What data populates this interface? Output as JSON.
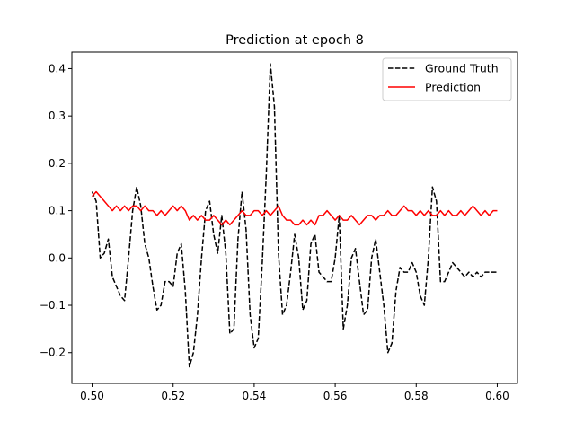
{
  "chart_data": {
    "type": "line",
    "title": "Prediction at epoch 8",
    "xlabel": "",
    "ylabel": "",
    "xlim": [
      0.495,
      0.605
    ],
    "ylim": [
      -0.265,
      0.435
    ],
    "xticks": [
      0.5,
      0.52,
      0.54,
      0.56,
      0.58,
      0.6
    ],
    "xtick_labels": [
      "0.50",
      "0.52",
      "0.54",
      "0.56",
      "0.58",
      "0.60"
    ],
    "yticks": [
      -0.2,
      -0.1,
      0.0,
      0.1,
      0.2,
      0.3,
      0.4
    ],
    "ytick_labels": [
      "−0.2",
      "−0.1",
      "0.0",
      "0.1",
      "0.2",
      "0.3",
      "0.4"
    ],
    "grid": false,
    "legend_position": "top-right",
    "series": [
      {
        "name": "Ground Truth",
        "color": "#000000",
        "style": "dashed",
        "x": [
          0.5,
          0.501,
          0.502,
          0.503,
          0.504,
          0.505,
          0.506,
          0.507,
          0.508,
          0.509,
          0.51,
          0.511,
          0.512,
          0.513,
          0.514,
          0.515,
          0.516,
          0.517,
          0.518,
          0.519,
          0.52,
          0.521,
          0.522,
          0.523,
          0.524,
          0.525,
          0.526,
          0.527,
          0.528,
          0.529,
          0.53,
          0.531,
          0.532,
          0.533,
          0.534,
          0.535,
          0.536,
          0.537,
          0.538,
          0.539,
          0.54,
          0.541,
          0.542,
          0.543,
          0.544,
          0.545,
          0.546,
          0.547,
          0.548,
          0.549,
          0.55,
          0.551,
          0.552,
          0.553,
          0.554,
          0.555,
          0.556,
          0.557,
          0.558,
          0.559,
          0.56,
          0.561,
          0.562,
          0.563,
          0.564,
          0.565,
          0.566,
          0.567,
          0.568,
          0.569,
          0.57,
          0.571,
          0.572,
          0.573,
          0.574,
          0.575,
          0.576,
          0.577,
          0.578,
          0.579,
          0.58,
          0.581,
          0.582,
          0.583,
          0.584,
          0.585,
          0.586,
          0.587,
          0.588,
          0.589,
          0.59,
          0.591,
          0.592,
          0.593,
          0.594,
          0.595,
          0.596,
          0.597,
          0.598,
          0.599,
          0.6
        ],
        "y": [
          0.14,
          0.12,
          0.0,
          0.01,
          0.04,
          -0.04,
          -0.06,
          -0.08,
          -0.09,
          0.0,
          0.1,
          0.15,
          0.11,
          0.03,
          0.0,
          -0.06,
          -0.11,
          -0.1,
          -0.05,
          -0.05,
          -0.06,
          0.01,
          0.03,
          -0.07,
          -0.23,
          -0.2,
          -0.12,
          0.0,
          0.1,
          0.12,
          0.05,
          0.01,
          0.09,
          0.01,
          -0.16,
          -0.15,
          0.04,
          0.14,
          0.06,
          -0.12,
          -0.19,
          -0.17,
          -0.01,
          0.18,
          0.41,
          0.32,
          0.01,
          -0.12,
          -0.1,
          -0.03,
          0.05,
          0.0,
          -0.11,
          -0.09,
          0.03,
          0.05,
          -0.03,
          -0.04,
          -0.05,
          -0.05,
          0.0,
          0.09,
          -0.15,
          -0.1,
          0.0,
          0.02,
          -0.05,
          -0.12,
          -0.11,
          0.0,
          0.04,
          -0.03,
          -0.1,
          -0.2,
          -0.18,
          -0.07,
          -0.02,
          -0.03,
          -0.03,
          -0.01,
          -0.03,
          -0.08,
          -0.1,
          0.0,
          0.15,
          0.12,
          -0.05,
          -0.05,
          -0.03,
          -0.01,
          -0.02,
          -0.03,
          -0.04,
          -0.03,
          -0.04,
          -0.03,
          -0.04,
          -0.03,
          -0.03,
          -0.03,
          -0.03
        ]
      },
      {
        "name": "Prediction",
        "color": "#ff0000",
        "style": "solid",
        "x": [
          0.5,
          0.501,
          0.502,
          0.503,
          0.504,
          0.505,
          0.506,
          0.507,
          0.508,
          0.509,
          0.51,
          0.511,
          0.512,
          0.513,
          0.514,
          0.515,
          0.516,
          0.517,
          0.518,
          0.519,
          0.52,
          0.521,
          0.522,
          0.523,
          0.524,
          0.525,
          0.526,
          0.527,
          0.528,
          0.529,
          0.53,
          0.531,
          0.532,
          0.533,
          0.534,
          0.535,
          0.536,
          0.537,
          0.538,
          0.539,
          0.54,
          0.541,
          0.542,
          0.543,
          0.544,
          0.545,
          0.546,
          0.547,
          0.548,
          0.549,
          0.55,
          0.551,
          0.552,
          0.553,
          0.554,
          0.555,
          0.556,
          0.557,
          0.558,
          0.559,
          0.56,
          0.561,
          0.562,
          0.563,
          0.564,
          0.565,
          0.566,
          0.567,
          0.568,
          0.569,
          0.57,
          0.571,
          0.572,
          0.573,
          0.574,
          0.575,
          0.576,
          0.577,
          0.578,
          0.579,
          0.58,
          0.581,
          0.582,
          0.583,
          0.584,
          0.585,
          0.586,
          0.587,
          0.588,
          0.589,
          0.59,
          0.591,
          0.592,
          0.593,
          0.594,
          0.595,
          0.596,
          0.597,
          0.598,
          0.599,
          0.6
        ],
        "y": [
          0.13,
          0.14,
          0.13,
          0.12,
          0.11,
          0.1,
          0.11,
          0.1,
          0.11,
          0.1,
          0.11,
          0.11,
          0.1,
          0.11,
          0.1,
          0.1,
          0.09,
          0.1,
          0.09,
          0.1,
          0.11,
          0.1,
          0.11,
          0.1,
          0.08,
          0.09,
          0.08,
          0.09,
          0.08,
          0.08,
          0.09,
          0.08,
          0.07,
          0.08,
          0.07,
          0.08,
          0.09,
          0.1,
          0.09,
          0.09,
          0.1,
          0.1,
          0.09,
          0.1,
          0.09,
          0.1,
          0.11,
          0.09,
          0.08,
          0.08,
          0.07,
          0.07,
          0.08,
          0.07,
          0.08,
          0.07,
          0.09,
          0.09,
          0.1,
          0.09,
          0.08,
          0.09,
          0.08,
          0.08,
          0.09,
          0.08,
          0.07,
          0.08,
          0.09,
          0.09,
          0.08,
          0.09,
          0.09,
          0.1,
          0.09,
          0.09,
          0.1,
          0.11,
          0.1,
          0.1,
          0.09,
          0.1,
          0.09,
          0.1,
          0.09,
          0.09,
          0.1,
          0.09,
          0.1,
          0.09,
          0.09,
          0.1,
          0.09,
          0.1,
          0.11,
          0.1,
          0.09,
          0.1,
          0.09,
          0.1,
          0.1
        ]
      }
    ]
  }
}
